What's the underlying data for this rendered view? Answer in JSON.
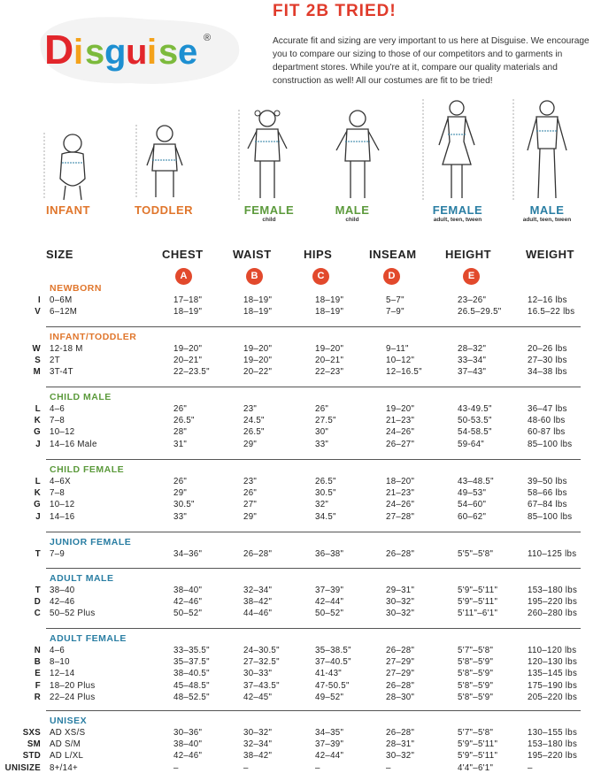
{
  "brand": {
    "name": "Disguise",
    "registered": "®"
  },
  "header": {
    "title": "FIT 2B TRIED!",
    "intro": "Accurate fit and sizing are very important to us here at Disguise. We encourage you to compare our sizing to those of our competitors and to garments in department stores. While you're at it, compare our quality materials and construction as well! All our costumes are fit to be tried!"
  },
  "figures": [
    {
      "label": "INFANT",
      "sub": "",
      "color": "#e0762c"
    },
    {
      "label": "TODDLER",
      "sub": "",
      "color": "#e0762c"
    },
    {
      "label": "FEMALE",
      "sub": "child",
      "color": "#5c9a3c"
    },
    {
      "label": "MALE",
      "sub": "child",
      "color": "#5c9a3c"
    },
    {
      "label": "FEMALE",
      "sub": "adult, teen, tween",
      "color": "#2a7ea3"
    },
    {
      "label": "MALE",
      "sub": "adult, teen, tween",
      "color": "#2a7ea3"
    }
  ],
  "measure_letters": [
    "A",
    "B",
    "C",
    "D",
    "E"
  ],
  "columns": {
    "size": "SIZE",
    "chest": "CHEST",
    "waist": "WAIST",
    "hips": "HIPS",
    "inseam": "INSEAM",
    "height": "HEIGHT",
    "weight": "WEIGHT"
  },
  "colors": {
    "red": "#e2492c",
    "orange": "#e0762c",
    "green": "#5c9a3c",
    "blue": "#2a7ea3"
  },
  "sections": [
    {
      "title": "NEWBORN",
      "color": "#e0762c",
      "rows": [
        {
          "code": "I",
          "size": "0–6M",
          "chest": "17–18\"",
          "waist": "18–19\"",
          "hips": "18–19\"",
          "inseam": "5–7\"",
          "height": "23–26\"",
          "weight": "12–16 lbs"
        },
        {
          "code": "V",
          "size": "6–12M",
          "chest": "18–19\"",
          "waist": "18–19\"",
          "hips": "18–19\"",
          "inseam": "7–9\"",
          "height": "26.5–29.5\"",
          "weight": "16.5–22 lbs"
        }
      ]
    },
    {
      "title": "INFANT/TODDLER",
      "color": "#e0762c",
      "rows": [
        {
          "code": "W",
          "size": "12-18 M",
          "chest": "19–20\"",
          "waist": "19–20\"",
          "hips": "19–20\"",
          "inseam": "9–11\"",
          "height": "28–32\"",
          "weight": "20–26 lbs"
        },
        {
          "code": "S",
          "size": "2T",
          "chest": "20–21\"",
          "waist": "19–20\"",
          "hips": "20–21\"",
          "inseam": "10–12\"",
          "height": "33–34\"",
          "weight": "27–30 lbs"
        },
        {
          "code": "M",
          "size": "3T-4T",
          "chest": "22–23.5\"",
          "waist": "20–22\"",
          "hips": "22–23\"",
          "inseam": "12–16.5\"",
          "height": "37–43\"",
          "weight": "34–38 lbs"
        }
      ]
    },
    {
      "title": "CHILD MALE",
      "color": "#5c9a3c",
      "rows": [
        {
          "code": "L",
          "size": "4–6",
          "chest": "26\"",
          "waist": "23\"",
          "hips": "26\"",
          "inseam": "19–20\"",
          "height": "43-49.5\"",
          "weight": "36–47 lbs"
        },
        {
          "code": "K",
          "size": "7–8",
          "chest": "26.5\"",
          "waist": "24.5\"",
          "hips": "27.5\"",
          "inseam": "21–23\"",
          "height": "50-53.5\"",
          "weight": "48-60 lbs"
        },
        {
          "code": "G",
          "size": "10–12",
          "chest": "28\"",
          "waist": "26.5\"",
          "hips": "30\"",
          "inseam": "24–26\"",
          "height": "54-58.5\"",
          "weight": "60-87 lbs"
        },
        {
          "code": "J",
          "size": "14–16 Male",
          "chest": "31\"",
          "waist": "29\"",
          "hips": "33\"",
          "inseam": "26–27\"",
          "height": "59-64\"",
          "weight": "85–100 lbs"
        }
      ]
    },
    {
      "title": "CHILD FEMALE",
      "color": "#5c9a3c",
      "rows": [
        {
          "code": "L",
          "size": "4–6X",
          "chest": "26\"",
          "waist": "23\"",
          "hips": "26.5\"",
          "inseam": "18–20\"",
          "height": "43–48.5\"",
          "weight": "39–50 lbs"
        },
        {
          "code": "K",
          "size": "7–8",
          "chest": "29\"",
          "waist": "26\"",
          "hips": "30.5\"",
          "inseam": "21–23\"",
          "height": "49–53\"",
          "weight": "58–66 lbs"
        },
        {
          "code": "G",
          "size": "10–12",
          "chest": "30.5\"",
          "waist": "27\"",
          "hips": "32\"",
          "inseam": "24–26\"",
          "height": "54–60\"",
          "weight": "67–84 lbs"
        },
        {
          "code": "J",
          "size": "14–16",
          "chest": "33\"",
          "waist": "29\"",
          "hips": "34.5\"",
          "inseam": "27–28\"",
          "height": "60–62\"",
          "weight": "85–100 lbs"
        }
      ]
    },
    {
      "title": "JUNIOR FEMALE",
      "color": "#2a7ea3",
      "rows": [
        {
          "code": "T",
          "size": "7–9",
          "chest": "34–36\"",
          "waist": "26–28\"",
          "hips": "36–38\"",
          "inseam": "26–28\"",
          "height": "5'5\"–5'8\"",
          "weight": "110–125 lbs"
        }
      ]
    },
    {
      "title": "ADULT MALE",
      "color": "#2a7ea3",
      "rows": [
        {
          "code": "T",
          "size": "38–40",
          "chest": "38–40\"",
          "waist": "32–34\"",
          "hips": "37–39\"",
          "inseam": "29–31\"",
          "height": "5'9\"–5'11\"",
          "weight": "153–180 lbs"
        },
        {
          "code": "D",
          "size": "42–46",
          "chest": "42–46\"",
          "waist": "38–42\"",
          "hips": "42–44\"",
          "inseam": "30–32\"",
          "height": "5'9\"–5'11\"",
          "weight": "195–220 lbs"
        },
        {
          "code": "C",
          "size": "50–52 Plus",
          "chest": "50–52\"",
          "waist": "44–46\"",
          "hips": "50–52\"",
          "inseam": "30–32\"",
          "height": "5'11\"–6'1\"",
          "weight": "260–280 lbs"
        }
      ]
    },
    {
      "title": "ADULT FEMALE",
      "color": "#2a7ea3",
      "rows": [
        {
          "code": "N",
          "size": "4–6",
          "chest": "33–35.5\"",
          "waist": "24–30.5\"",
          "hips": "35–38.5\"",
          "inseam": "26–28\"",
          "height": "5'7\"–5'8\"",
          "weight": "110–120 lbs"
        },
        {
          "code": "B",
          "size": "8–10",
          "chest": "35–37.5\"",
          "waist": "27–32.5\"",
          "hips": "37–40.5\"",
          "inseam": "27–29\"",
          "height": "5'8\"–5'9\"",
          "weight": "120–130 lbs"
        },
        {
          "code": "E",
          "size": "12–14",
          "chest": "38–40.5\"",
          "waist": "30–33\"",
          "hips": "41-43\"",
          "inseam": "27–29\"",
          "height": "5'8\"–5'9\"",
          "weight": "135–145 lbs"
        },
        {
          "code": "F",
          "size": "18–20 Plus",
          "chest": "45–48.5\"",
          "waist": "37–43.5\"",
          "hips": "47-50.5\"",
          "inseam": "26–28\"",
          "height": "5'8\"–5'9\"",
          "weight": "175–190 lbs"
        },
        {
          "code": "R",
          "size": "22–24 Plus",
          "chest": "48–52.5\"",
          "waist": "42–45\"",
          "hips": "49–52\"",
          "inseam": "28–30\"",
          "height": "5'8\"–5'9\"",
          "weight": "205–220 lbs"
        }
      ]
    },
    {
      "title": "UNISEX",
      "color": "#2a7ea3",
      "rows": [
        {
          "code": "SXS",
          "size": "AD XS/S",
          "chest": "30–36\"",
          "waist": "30–32\"",
          "hips": "34–35\"",
          "inseam": "26–28\"",
          "height": "5'7\"–5'8\"",
          "weight": "130–155 lbs"
        },
        {
          "code": "SM",
          "size": "AD S/M",
          "chest": "38–40\"",
          "waist": "32–34\"",
          "hips": "37–39\"",
          "inseam": "28–31\"",
          "height": "5'9\"–5'11\"",
          "weight": "153–180 lbs"
        },
        {
          "code": "STD",
          "size": "AD L/XL",
          "chest": "42–46\"",
          "waist": "38–42\"",
          "hips": "42–44\"",
          "inseam": "30–32\"",
          "height": "5'9\"–5'11\"",
          "weight": "195–220 lbs"
        },
        {
          "code": "UNISIZE",
          "size": "8+/14+",
          "chest": "–",
          "waist": "–",
          "hips": "–",
          "inseam": "–",
          "height": "4'4\"–6'1\"",
          "weight": "–"
        }
      ]
    }
  ]
}
